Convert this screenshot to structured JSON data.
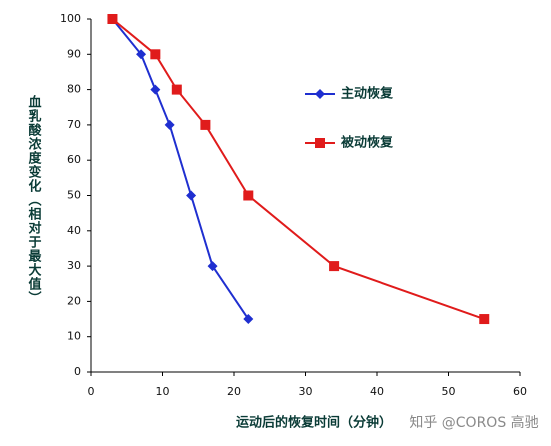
{
  "chart_data": {
    "type": "line",
    "ylabel": "血乳酸浓度变化（相对于最大值）",
    "xlabel": "运动后的恢复时间（分钟）",
    "watermark": "知乎 @COROS 高驰",
    "series": [
      {
        "name": "主动恢复",
        "color": "#1f2fd0",
        "marker": "diamond",
        "x": [
          3,
          7,
          9,
          11,
          14,
          17,
          22
        ],
        "values": [
          100,
          90,
          80,
          70,
          50,
          30,
          15
        ]
      },
      {
        "name": "被动恢复",
        "color": "#e01b1b",
        "marker": "square",
        "x": [
          3,
          9,
          12,
          16,
          22,
          34,
          55
        ],
        "values": [
          100,
          90,
          80,
          70,
          50,
          30,
          15
        ]
      }
    ],
    "xlim": [
      0,
      60
    ],
    "xticks": [
      0,
      10,
      20,
      30,
      40,
      50,
      60
    ],
    "ylim": [
      0,
      100
    ],
    "yticks": [
      0,
      10,
      20,
      30,
      40,
      50,
      60,
      70,
      80,
      90,
      100
    ],
    "grid": false
  }
}
